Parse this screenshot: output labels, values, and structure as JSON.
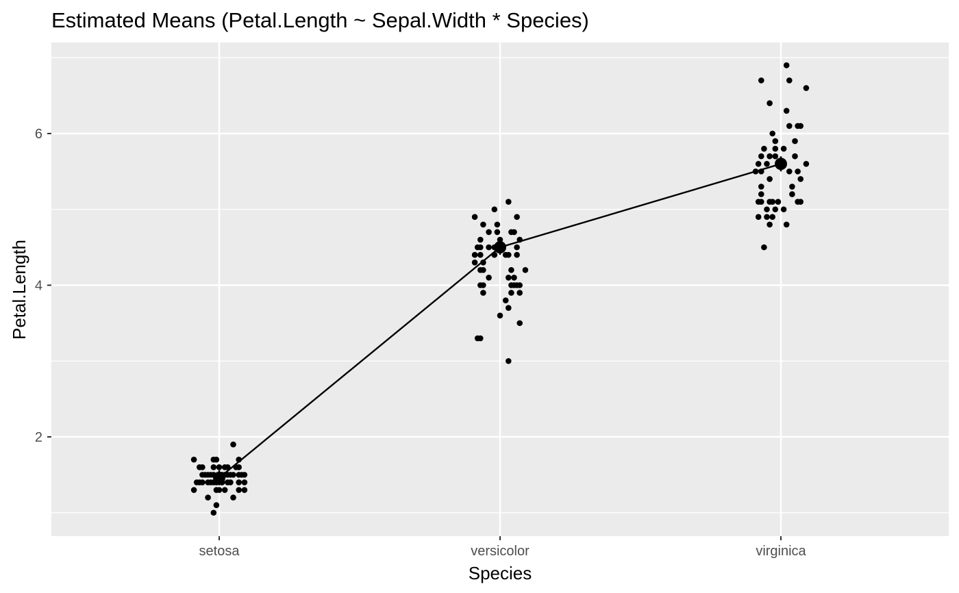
{
  "chart_data": {
    "type": "scatter",
    "title": "Estimated Means (Petal.Length ~ Sepal.Width * Species)",
    "xlabel": "Species",
    "ylabel": "Petal.Length",
    "categories": [
      "setosa",
      "versicolor",
      "virginica"
    ],
    "ylim": [
      0.7,
      7.0
    ],
    "yticks": [
      2,
      4,
      6
    ],
    "grid": true,
    "colors": {
      "panel": "#ebebeb",
      "grid": "#ffffff",
      "points": "#000000",
      "tick_text": "#4d4d4d"
    },
    "estimated_means": [
      {
        "category": "setosa",
        "value": 1.46
      },
      {
        "category": "versicolor",
        "value": 4.5
      },
      {
        "category": "virginica",
        "value": 5.6
      }
    ],
    "observations": [
      {
        "category": "setosa",
        "points": [
          [
            -0.09,
            1.7
          ],
          [
            -0.07,
            1.6
          ],
          [
            -0.06,
            1.6
          ],
          [
            -0.08,
            1.4
          ],
          [
            -0.07,
            1.4
          ],
          [
            -0.06,
            1.4
          ],
          [
            -0.05,
            1.5
          ],
          [
            -0.06,
            1.5
          ],
          [
            -0.09,
            1.3
          ],
          [
            -0.04,
            1.5
          ],
          [
            -0.03,
            1.5
          ],
          [
            -0.02,
            1.4
          ],
          [
            -0.02,
            1.6
          ],
          [
            -0.04,
            1.2
          ],
          [
            -0.03,
            1.4
          ],
          [
            -0.02,
            1.5
          ],
          [
            -0.01,
            1.4
          ],
          [
            0.0,
            1.5
          ],
          [
            -0.02,
            1.7
          ],
          [
            -0.01,
            1.7
          ],
          [
            -0.01,
            1.3
          ],
          [
            0.0,
            1.3
          ],
          [
            -0.02,
            1.0
          ],
          [
            -0.01,
            1.1
          ],
          [
            0.01,
            1.5
          ],
          [
            0.0,
            1.6
          ],
          [
            0.01,
            1.4
          ],
          [
            0.02,
            1.5
          ],
          [
            0.02,
            1.3
          ],
          [
            0.02,
            1.6
          ],
          [
            0.03,
            1.4
          ],
          [
            0.03,
            1.6
          ],
          [
            0.04,
            1.5
          ],
          [
            0.04,
            1.4
          ],
          [
            0.05,
            1.5
          ],
          [
            0.05,
            1.9
          ],
          [
            0.06,
            1.6
          ],
          [
            0.05,
            1.2
          ],
          [
            0.07,
            1.7
          ],
          [
            0.07,
            1.6
          ],
          [
            0.07,
            1.5
          ],
          [
            0.07,
            1.4
          ],
          [
            0.07,
            1.3
          ],
          [
            0.08,
            1.5
          ],
          [
            0.09,
            1.5
          ],
          [
            0.09,
            1.4
          ],
          [
            0.09,
            1.3
          ],
          [
            0.01,
            1.4
          ],
          [
            -0.04,
            1.4
          ],
          [
            0.03,
            1.5
          ]
        ]
      },
      {
        "category": "versicolor",
        "points": [
          [
            -0.09,
            4.9
          ],
          [
            -0.09,
            4.3
          ],
          [
            -0.09,
            4.4
          ],
          [
            -0.08,
            4.5
          ],
          [
            -0.07,
            4.4
          ],
          [
            -0.07,
            4.5
          ],
          [
            -0.07,
            4.6
          ],
          [
            -0.07,
            4.2
          ],
          [
            -0.07,
            4.0
          ],
          [
            -0.08,
            3.3
          ],
          [
            -0.07,
            3.3
          ],
          [
            -0.06,
            4.8
          ],
          [
            -0.06,
            4.3
          ],
          [
            -0.06,
            4.2
          ],
          [
            -0.06,
            4.0
          ],
          [
            -0.06,
            3.9
          ],
          [
            -0.04,
            4.7
          ],
          [
            -0.04,
            4.5
          ],
          [
            -0.04,
            4.1
          ],
          [
            -0.02,
            5.0
          ],
          [
            -0.02,
            4.5
          ],
          [
            -0.02,
            4.4
          ],
          [
            -0.01,
            4.7
          ],
          [
            -0.01,
            4.8
          ],
          [
            0.0,
            4.6
          ],
          [
            0.0,
            3.6
          ],
          [
            0.01,
            4.5
          ],
          [
            0.02,
            4.4
          ],
          [
            0.02,
            3.8
          ],
          [
            0.03,
            4.4
          ],
          [
            0.03,
            4.1
          ],
          [
            0.03,
            3.7
          ],
          [
            0.03,
            3.0
          ],
          [
            0.03,
            5.1
          ],
          [
            0.04,
            4.7
          ],
          [
            0.04,
            4.2
          ],
          [
            0.04,
            3.9
          ],
          [
            0.04,
            4.0
          ],
          [
            0.05,
            4.7
          ],
          [
            0.05,
            4.0
          ],
          [
            0.05,
            4.1
          ],
          [
            0.06,
            4.9
          ],
          [
            0.06,
            4.4
          ],
          [
            0.06,
            4.5
          ],
          [
            0.06,
            4.0
          ],
          [
            0.07,
            4.6
          ],
          [
            0.07,
            4.0
          ],
          [
            0.07,
            3.9
          ],
          [
            0.07,
            3.5
          ],
          [
            0.09,
            4.2
          ]
        ]
      },
      {
        "category": "virginica",
        "points": [
          [
            -0.09,
            5.5
          ],
          [
            -0.08,
            5.6
          ],
          [
            -0.08,
            5.1
          ],
          [
            -0.08,
            4.9
          ],
          [
            -0.07,
            6.7
          ],
          [
            -0.07,
            5.5
          ],
          [
            -0.07,
            5.7
          ],
          [
            -0.07,
            5.3
          ],
          [
            -0.07,
            5.1
          ],
          [
            -0.07,
            5.2
          ],
          [
            -0.06,
            4.5
          ],
          [
            -0.06,
            5.8
          ],
          [
            -0.05,
            5.0
          ],
          [
            -0.05,
            4.9
          ],
          [
            -0.05,
            5.6
          ],
          [
            -0.04,
            5.7
          ],
          [
            -0.04,
            6.4
          ],
          [
            -0.04,
            5.4
          ],
          [
            -0.04,
            5.1
          ],
          [
            -0.04,
            4.8
          ],
          [
            -0.03,
            6.0
          ],
          [
            -0.03,
            5.1
          ],
          [
            -0.03,
            4.9
          ],
          [
            -0.02,
            5.8
          ],
          [
            -0.02,
            5.9
          ],
          [
            -0.02,
            5.7
          ],
          [
            -0.02,
            5.0
          ],
          [
            -0.01,
            5.6
          ],
          [
            -0.01,
            5.1
          ],
          [
            0.01,
            5.8
          ],
          [
            0.01,
            5.6
          ],
          [
            0.01,
            5.0
          ],
          [
            0.02,
            6.9
          ],
          [
            0.02,
            6.3
          ],
          [
            0.02,
            4.8
          ],
          [
            0.03,
            6.7
          ],
          [
            0.03,
            6.1
          ],
          [
            0.03,
            5.5
          ],
          [
            0.04,
            5.3
          ],
          [
            0.04,
            5.2
          ],
          [
            0.05,
            5.9
          ],
          [
            0.05,
            5.7
          ],
          [
            0.06,
            6.1
          ],
          [
            0.06,
            5.5
          ],
          [
            0.06,
            5.1
          ],
          [
            0.07,
            6.1
          ],
          [
            0.07,
            5.1
          ],
          [
            0.07,
            5.4
          ],
          [
            0.09,
            6.6
          ],
          [
            0.09,
            5.6
          ]
        ]
      }
    ]
  }
}
